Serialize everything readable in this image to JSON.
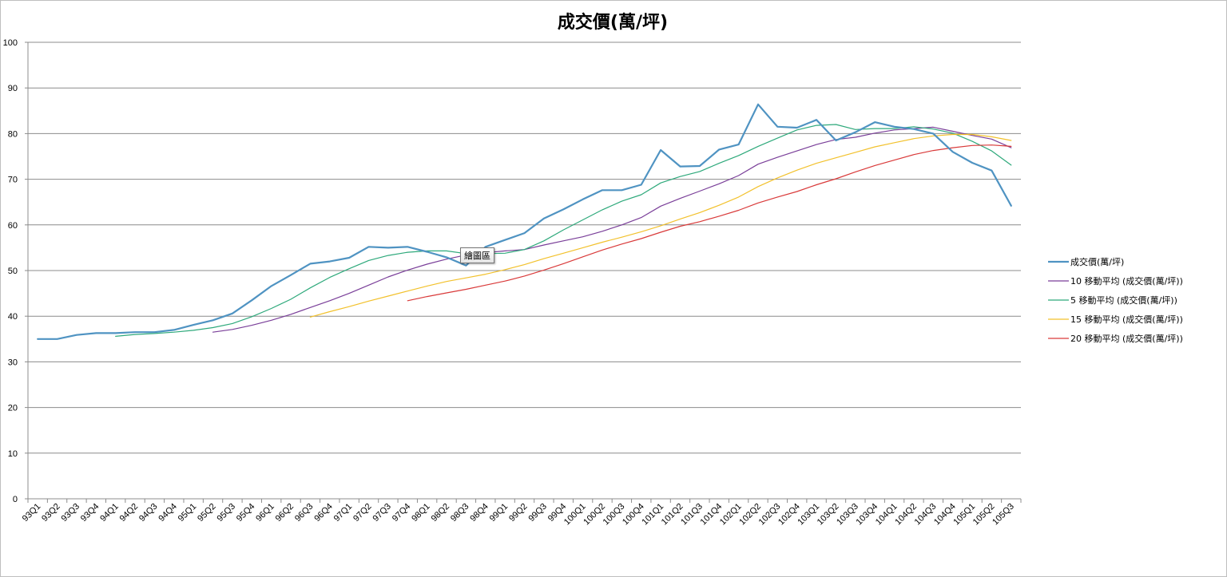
{
  "chart_data": {
    "type": "line",
    "title": "成交價(萬/坪)",
    "xlabel": "",
    "ylabel": "",
    "ylim": [
      0,
      100
    ],
    "yticks": [
      0,
      10,
      20,
      30,
      40,
      50,
      60,
      70,
      80,
      90,
      100
    ],
    "grid": true,
    "legend_position": "right",
    "categories": [
      "93Q1",
      "93Q2",
      "93Q3",
      "93Q4",
      "94Q1",
      "94Q2",
      "94Q3",
      "94Q4",
      "95Q1",
      "95Q2",
      "95Q3",
      "95Q4",
      "96Q1",
      "96Q2",
      "96Q3",
      "96Q4",
      "97Q1",
      "97Q2",
      "97Q3",
      "97Q4",
      "98Q1",
      "98Q2",
      "98Q3",
      "98Q4",
      "99Q1",
      "99Q2",
      "99Q3",
      "99Q4",
      "100Q1",
      "100Q2",
      "100Q3",
      "100Q4",
      "101Q1",
      "101Q2",
      "101Q3",
      "101Q4",
      "102Q1",
      "102Q2",
      "102Q3",
      "102Q4",
      "103Q1",
      "103Q2",
      "103Q3",
      "103Q4",
      "104Q1",
      "104Q2",
      "104Q3",
      "104Q4",
      "105Q1",
      "105Q2",
      "105Q3"
    ],
    "series": [
      {
        "name": "成交價(萬/坪)",
        "color": "#4f93c2",
        "width": 2.2,
        "values": [
          35.0,
          35.0,
          35.9,
          36.3,
          36.3,
          36.5,
          36.5,
          37.0,
          38.1,
          39.1,
          40.6,
          43.5,
          46.6,
          49.0,
          51.5,
          52.0,
          52.8,
          55.2,
          55.0,
          55.2,
          54.1,
          52.9,
          51.1,
          55.2,
          56.7,
          58.2,
          61.4,
          63.4,
          65.6,
          67.6,
          67.6,
          68.8,
          76.4,
          72.8,
          72.9,
          76.5,
          77.6,
          86.4,
          81.5,
          81.3,
          83.0,
          78.5,
          80.3,
          82.5,
          81.5,
          81.0,
          80.0,
          76.0,
          73.6,
          71.9,
          64.2
        ]
      },
      {
        "name": "10 移動平均 (成交價(萬/坪))",
        "color": "#7a3f99",
        "width": 1.2,
        "values": [
          null,
          null,
          null,
          null,
          null,
          null,
          null,
          null,
          null,
          36.5,
          37.1,
          38.0,
          39.1,
          40.4,
          41.9,
          43.4,
          45.0,
          46.8,
          48.6,
          50.1,
          51.4,
          52.5,
          53.4,
          53.9,
          54.3,
          54.6,
          55.6,
          56.5,
          57.4,
          58.6,
          60.0,
          61.6,
          64.1,
          65.8,
          67.4,
          69.0,
          70.8,
          73.3,
          74.8,
          76.2,
          77.6,
          78.7,
          79.2,
          80.1,
          80.8,
          81.1,
          81.4,
          80.5,
          79.6,
          78.8,
          76.9
        ]
      },
      {
        "name": "5 移動平均 (成交價(萬/坪))",
        "color": "#2ea97b",
        "width": 1.2,
        "values": [
          null,
          null,
          null,
          null,
          35.6,
          36.0,
          36.2,
          36.5,
          36.9,
          37.5,
          38.4,
          39.9,
          41.7,
          43.7,
          46.2,
          48.5,
          50.4,
          52.2,
          53.3,
          54.0,
          54.3,
          54.3,
          53.7,
          53.7,
          53.8,
          54.6,
          56.5,
          58.9,
          61.1,
          63.3,
          65.2,
          66.6,
          69.2,
          70.6,
          71.7,
          73.5,
          75.2,
          77.2,
          79.0,
          80.8,
          81.8,
          82.0,
          80.9,
          81.1,
          81.1,
          81.5,
          81.0,
          80.1,
          78.3,
          76.2,
          73.1
        ]
      },
      {
        "name": "15 移動平均 (成交價(萬/坪))",
        "color": "#f2c12c",
        "width": 1.2,
        "values": [
          null,
          null,
          null,
          null,
          null,
          null,
          null,
          null,
          null,
          null,
          null,
          null,
          null,
          null,
          39.8,
          41.0,
          42.1,
          43.3,
          44.4,
          45.5,
          46.6,
          47.6,
          48.4,
          49.2,
          50.2,
          51.3,
          52.6,
          53.8,
          55.0,
          56.2,
          57.3,
          58.5,
          59.8,
          61.3,
          62.7,
          64.3,
          66.1,
          68.4,
          70.3,
          72.0,
          73.5,
          74.7,
          75.9,
          77.1,
          78.0,
          78.9,
          79.5,
          79.8,
          79.8,
          79.3,
          78.5
        ]
      },
      {
        "name": "20 移動平均 (成交價(萬/坪))",
        "color": "#d93a3a",
        "width": 1.2,
        "values": [
          null,
          null,
          null,
          null,
          null,
          null,
          null,
          null,
          null,
          null,
          null,
          null,
          null,
          null,
          null,
          null,
          null,
          null,
          null,
          43.4,
          44.3,
          45.1,
          45.9,
          46.8,
          47.7,
          48.8,
          50.1,
          51.5,
          53.0,
          54.5,
          55.8,
          57.0,
          58.4,
          59.7,
          60.7,
          61.9,
          63.2,
          64.8,
          66.1,
          67.3,
          68.8,
          70.1,
          71.6,
          73.0,
          74.2,
          75.4,
          76.3,
          76.9,
          77.4,
          77.5,
          77.2
        ]
      }
    ]
  },
  "tooltip": {
    "label": "繪圖區"
  }
}
